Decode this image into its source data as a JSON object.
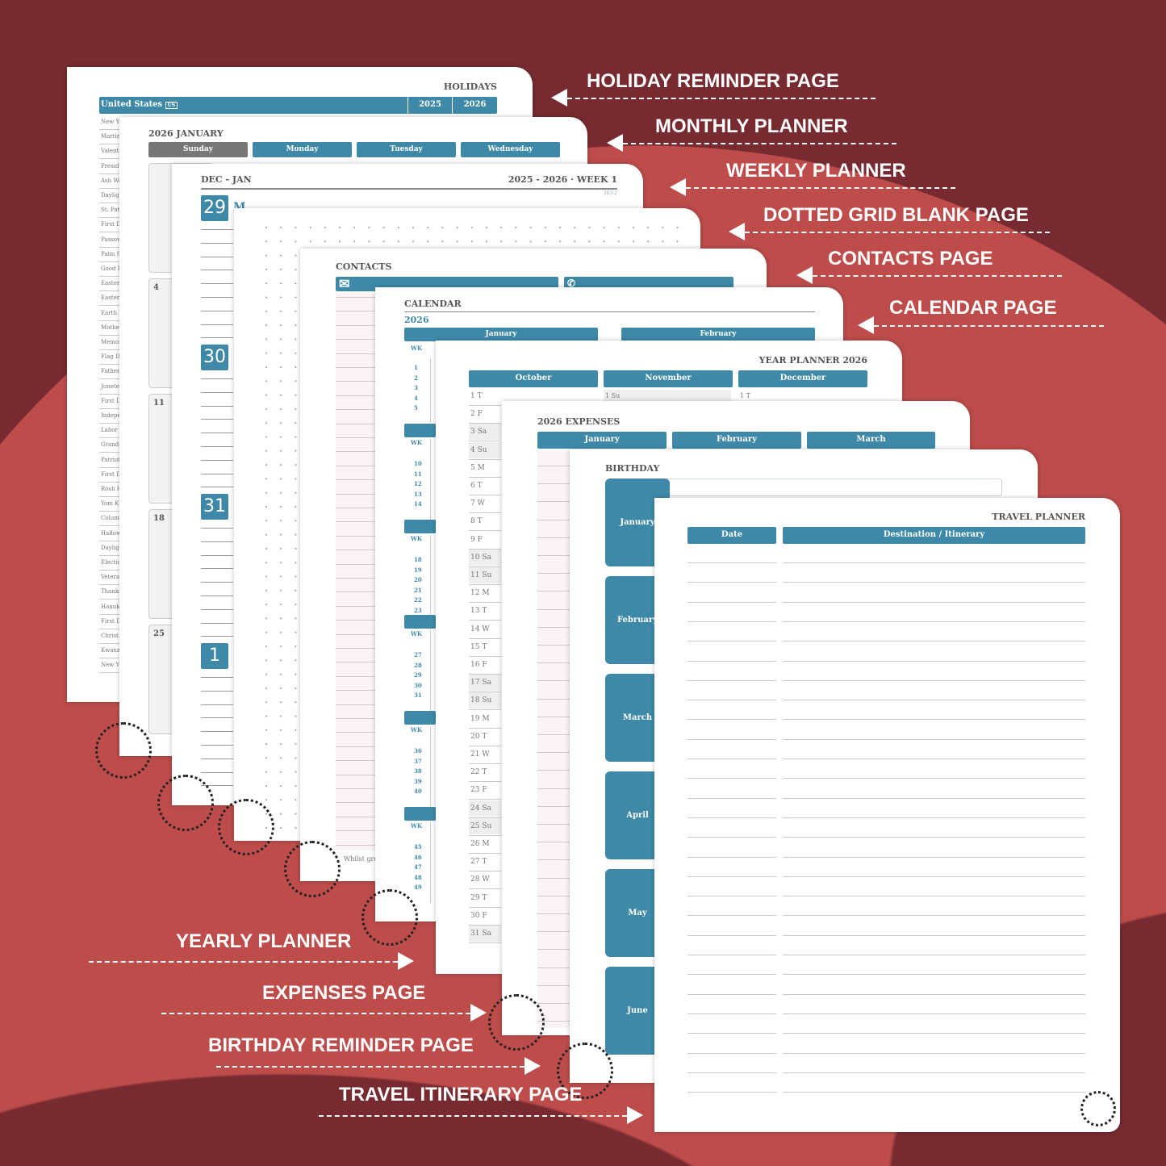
{
  "colors": {
    "background": "#772a30",
    "accent": "#3e89a8",
    "wave": "#bd4c4b"
  },
  "labels_right": [
    "HOLIDAY REMINDER PAGE",
    "MONTHLY PLANNER",
    "WEEKLY PLANNER",
    "DOTTED GRID BLANK PAGE",
    "CONTACTS PAGE",
    "CALENDAR PAGE"
  ],
  "labels_left": [
    "YEARLY PLANNER",
    "EXPENSES PAGE",
    "BIRTHDAY REMINDER PAGE",
    "TRAVEL ITINERARY PAGE"
  ],
  "holidays": {
    "title": "HOLIDAYS",
    "country": "United States",
    "country_badge": "US",
    "years": [
      "2025",
      "2026"
    ],
    "items": [
      "New Yea",
      "Martin",
      "Valenti",
      "Preside",
      "Ash We",
      "Dayligh",
      "St. Patr",
      "First D",
      "Passov",
      "Palm Su",
      "Good F",
      "Easter S",
      "Easter",
      "Earth D",
      "Mother",
      "Memor",
      "Flag Da",
      "Father",
      "Junete",
      "First D",
      "Indepe",
      "Labor D",
      "Grandp",
      "Patriot",
      "First D",
      "Rosh H",
      "Yom Ki",
      "Columb",
      "Hallow",
      "Dayligh",
      "Electio",
      "Veteran",
      "Thanks",
      "Hanuk",
      "First D",
      "Christ",
      "Kwanz",
      "New Ye"
    ]
  },
  "monthly": {
    "title": "2026 JANUARY",
    "days": [
      "Sunday",
      "Monday",
      "Tuesday",
      "Wednesday"
    ],
    "week_starts": [
      "",
      "4",
      "11",
      "18",
      "25"
    ]
  },
  "weekly": {
    "title": "DEC - JAN",
    "week": "2025 - 2026 · WEEK 1",
    "day_count": "363-2",
    "dates": [
      "29",
      "30",
      "31",
      "1"
    ],
    "first_day": "M"
  },
  "contacts": {
    "title": "CONTACTS",
    "footer": "Whilst grea"
  },
  "calendar": {
    "title": "CALENDAR",
    "year": "2026",
    "months": [
      "January",
      "February"
    ],
    "wk": "WK",
    "weeks": [
      [
        "1",
        "2",
        "3",
        "4",
        "5"
      ],
      [
        "10",
        "11",
        "12",
        "13",
        "14"
      ],
      [
        "18",
        "19",
        "20",
        "21",
        "22",
        "23"
      ],
      [
        "27",
        "28",
        "29",
        "30",
        "31"
      ],
      [
        "36",
        "37",
        "38",
        "39",
        "40"
      ],
      [
        "45",
        "46",
        "47",
        "48",
        "49"
      ]
    ]
  },
  "year_planner": {
    "title": "YEAR PLANNER 2026",
    "months": [
      "October",
      "November",
      "December"
    ],
    "october": [
      "1 T",
      "2 F",
      "3 Sa",
      "4 Su",
      "5 M",
      "6 T",
      "7 W",
      "8 T",
      "9 F",
      "10 Sa",
      "11 Su",
      "12 M",
      "13 T",
      "14 W",
      "15 T",
      "16 F",
      "17 Sa",
      "18 Su",
      "19 M",
      "20 T",
      "21 W",
      "22 T",
      "23 F",
      "24 Sa",
      "25 Su",
      "26 M",
      "27 T",
      "28 W",
      "29 T",
      "30 F",
      "31 Sa"
    ],
    "november_first": "1 Su",
    "december_first": "1 T"
  },
  "expenses": {
    "title": "2026 EXPENSES",
    "months": [
      "January",
      "February",
      "March"
    ]
  },
  "birthday": {
    "title": "BIRTHDAY",
    "months": [
      "January",
      "February",
      "March",
      "April",
      "May",
      "June"
    ]
  },
  "travel": {
    "title": "TRAVEL PLANNER",
    "columns": [
      "Date",
      "Destination / Itinerary"
    ]
  }
}
